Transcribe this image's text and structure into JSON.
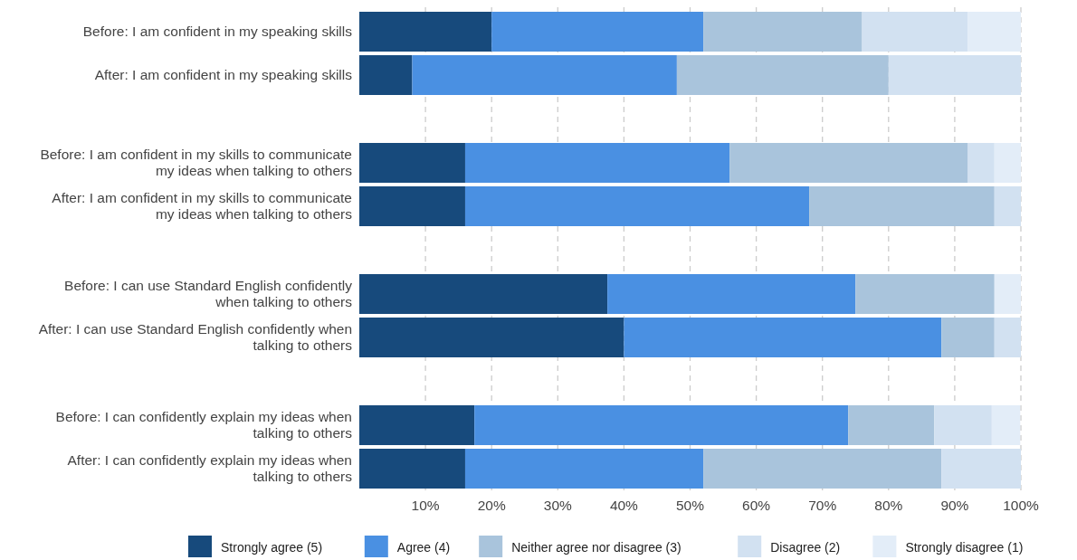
{
  "chart_data": {
    "type": "bar",
    "orientation": "horizontal",
    "stacked": true,
    "categories": [
      "Before: I am confident in my speaking skills",
      "After: I am confident in my speaking skills",
      "Before: I am confident in my skills to communicate my ideas when talking to others",
      "After: I am confident in my skills to communicate my ideas when talking to others",
      "Before: I can use Standard English confidently when talking to others",
      "After: I can use Standard English confidently when talking to others",
      "Before: I can confidently explain my ideas when talking to others",
      "After: I can confidently explain my ideas when talking to others"
    ],
    "series": [
      {
        "name": "Strongly agree (5)",
        "color": "#174a7c",
        "values": [
          20,
          8,
          16,
          16,
          37.5,
          40,
          17.4,
          16
        ]
      },
      {
        "name": "Agree (4)",
        "color": "#4a90e2",
        "values": [
          32,
          40,
          40,
          52,
          37.5,
          48,
          56.5,
          36
        ]
      },
      {
        "name": "Neither agree nor disagree (3)",
        "color": "#a9c4dc",
        "values": [
          24,
          32,
          36,
          28,
          21,
          8,
          13,
          36
        ]
      },
      {
        "name": "Disagree (2)",
        "color": "#d2e1f1",
        "values": [
          16,
          20,
          4,
          4,
          0,
          4,
          8.7,
          12
        ]
      },
      {
        "name": "Strongly disagree (1)",
        "color": "#e3edf8",
        "values": [
          8,
          0,
          4,
          0,
          4,
          0,
          4.3,
          0
        ]
      }
    ],
    "xlim": [
      0,
      100
    ],
    "xticks": [
      {
        "value": 10,
        "label": "10%"
      },
      {
        "value": 20,
        "label": "20%"
      },
      {
        "value": 30,
        "label": "30%"
      },
      {
        "value": 40,
        "label": "40%"
      },
      {
        "value": 50,
        "label": "50%"
      },
      {
        "value": 60,
        "label": "60%"
      },
      {
        "value": 70,
        "label": "70%"
      },
      {
        "value": 80,
        "label": "80%"
      },
      {
        "value": 90,
        "label": "90%"
      },
      {
        "value": 100,
        "label": "100%"
      }
    ],
    "grid": "x",
    "legend": "bottom"
  }
}
